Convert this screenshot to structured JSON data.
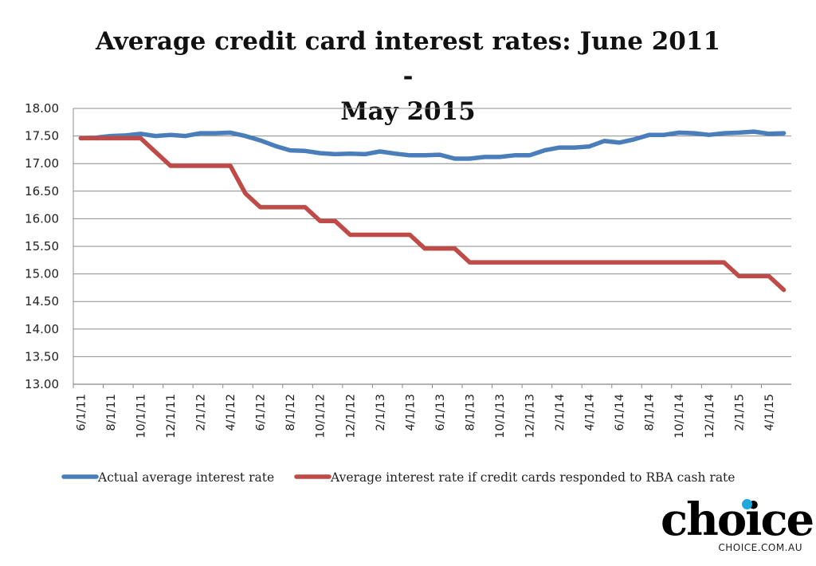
{
  "chart_data": {
    "type": "line",
    "title": "Average credit card interest rates: June 2011 - May 2015",
    "title_lines": [
      "Average credit card interest rates: June 2011 -",
      "May 2015"
    ],
    "ylim": [
      13.0,
      18.0
    ],
    "yticks": [
      "13.00",
      "13.50",
      "14.00",
      "14.50",
      "15.00",
      "15.50",
      "16.00",
      "16.50",
      "17.00",
      "17.50",
      "18.00"
    ],
    "grid": "horizontal",
    "legend_position": "bottom",
    "x": [
      "6/1/11",
      "7/1/11",
      "8/1/11",
      "9/1/11",
      "10/1/11",
      "11/1/11",
      "12/1/11",
      "1/1/12",
      "2/1/12",
      "3/1/12",
      "4/1/12",
      "5/1/12",
      "6/1/12",
      "7/1/12",
      "8/1/12",
      "9/1/12",
      "10/1/12",
      "11/1/12",
      "12/1/12",
      "1/1/13",
      "2/1/13",
      "3/1/13",
      "4/1/13",
      "5/1/13",
      "6/1/13",
      "7/1/13",
      "8/1/13",
      "9/1/13",
      "10/1/13",
      "11/1/13",
      "12/1/13",
      "1/1/14",
      "2/1/14",
      "3/1/14",
      "4/1/14",
      "5/1/14",
      "6/1/14",
      "7/1/14",
      "8/1/14",
      "9/1/14",
      "10/1/14",
      "11/1/14",
      "12/1/14",
      "1/1/15",
      "2/1/15",
      "3/1/15",
      "4/1/15",
      "5/1/15"
    ],
    "xtick_labels": [
      "6/1/11",
      "8/1/11",
      "10/1/11",
      "12/1/11",
      "2/1/12",
      "4/1/12",
      "6/1/12",
      "8/1/12",
      "10/1/12",
      "12/1/12",
      "2/1/13",
      "4/1/13",
      "6/1/13",
      "8/1/13",
      "10/1/13",
      "12/1/13",
      "2/1/14",
      "4/1/14",
      "6/1/14",
      "8/1/14",
      "10/1/14",
      "12/1/14",
      "2/1/15",
      "4/1/15"
    ],
    "series": [
      {
        "name": "Actual average interest rate",
        "color": "#4a7ebb",
        "values": [
          17.46,
          17.47,
          17.5,
          17.51,
          17.54,
          17.5,
          17.52,
          17.5,
          17.55,
          17.55,
          17.56,
          17.5,
          17.42,
          17.32,
          17.24,
          17.23,
          17.19,
          17.17,
          17.18,
          17.17,
          17.22,
          17.18,
          17.15,
          17.15,
          17.16,
          17.09,
          17.09,
          17.12,
          17.12,
          17.15,
          17.15,
          17.24,
          17.29,
          17.29,
          17.31,
          17.41,
          17.38,
          17.44,
          17.52,
          17.52,
          17.56,
          17.55,
          17.52,
          17.55,
          17.56,
          17.58,
          17.54,
          17.55
        ]
      },
      {
        "name": "Average interest rate if credit cards responded to RBA cash rate",
        "color": "#be4b48",
        "values": [
          17.46,
          17.46,
          17.46,
          17.46,
          17.46,
          17.21,
          16.96,
          16.96,
          16.96,
          16.96,
          16.96,
          16.46,
          16.21,
          16.21,
          16.21,
          16.21,
          15.96,
          15.96,
          15.71,
          15.71,
          15.71,
          15.71,
          15.71,
          15.46,
          15.46,
          15.46,
          15.21,
          15.21,
          15.21,
          15.21,
          15.21,
          15.21,
          15.21,
          15.21,
          15.21,
          15.21,
          15.21,
          15.21,
          15.21,
          15.21,
          15.21,
          15.21,
          15.21,
          15.21,
          14.96,
          14.96,
          14.96,
          14.71
        ]
      }
    ]
  },
  "logo": {
    "word": "choice",
    "site": "CHOICE.COM.AU",
    "accent": "#1ea8e0"
  }
}
